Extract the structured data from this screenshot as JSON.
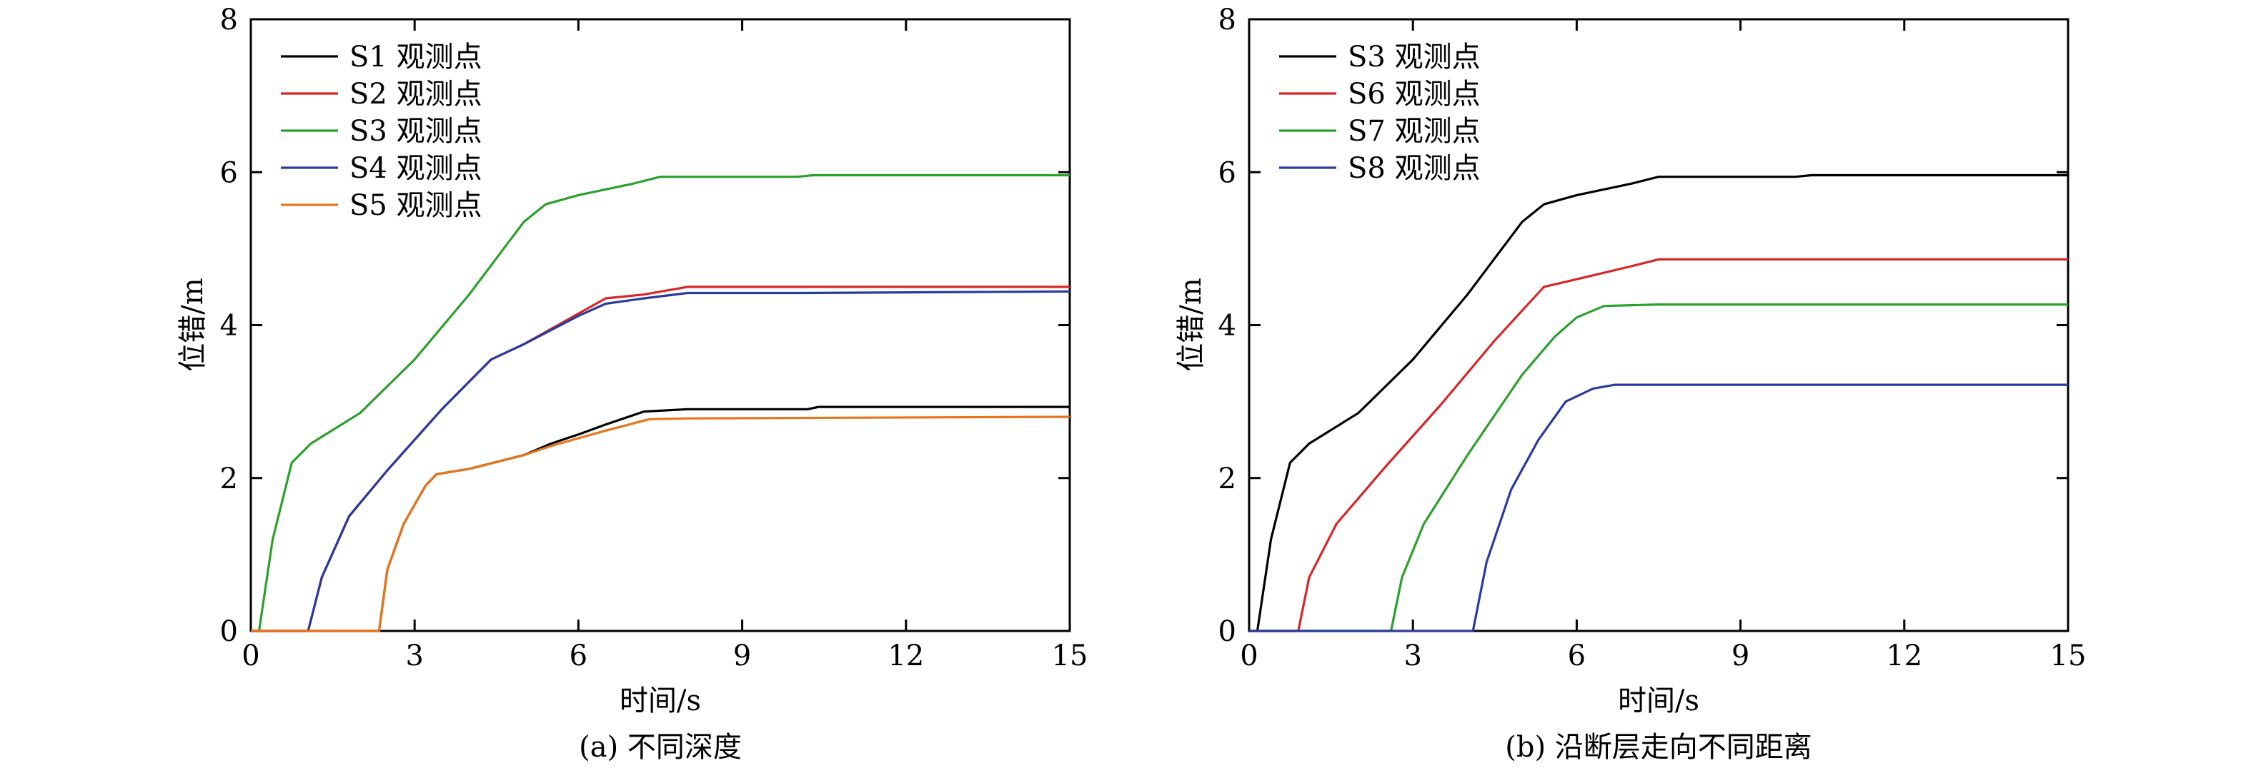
{
  "colors": {
    "black": "#000000",
    "red": "#d62728",
    "green": "#2ca02c",
    "blue": "#2b3a9e",
    "orange": "#e8741c"
  },
  "chart_data": [
    {
      "type": "line",
      "caption": "(a) 不同深度",
      "xlabel": "时间/s",
      "ylabel": "位错/m",
      "xlim": [
        0,
        15
      ],
      "ylim": [
        0,
        8
      ],
      "xticks": [
        0,
        3,
        6,
        9,
        12,
        15
      ],
      "yticks": [
        0,
        2,
        4,
        6,
        8
      ],
      "legend": "top-left",
      "series": [
        {
          "name": "S1 观测点",
          "color": "#000000",
          "points": [
            [
              0,
              0
            ],
            [
              2.35,
              0
            ],
            [
              2.5,
              0.8
            ],
            [
              2.8,
              1.4
            ],
            [
              3.2,
              1.9
            ],
            [
              3.4,
              2.05
            ],
            [
              4,
              2.12
            ],
            [
              5,
              2.3
            ],
            [
              5.5,
              2.45
            ],
            [
              6,
              2.57
            ],
            [
              6.5,
              2.7
            ],
            [
              7.2,
              2.87
            ],
            [
              8,
              2.9
            ],
            [
              10.2,
              2.9
            ],
            [
              10.4,
              2.93
            ],
            [
              15,
              2.93
            ]
          ]
        },
        {
          "name": "S2 观测点",
          "color": "#d62728",
          "points": [
            [
              0,
              0
            ],
            [
              1.05,
              0
            ],
            [
              1.3,
              0.7
            ],
            [
              1.8,
              1.5
            ],
            [
              2.5,
              2.1
            ],
            [
              3.5,
              2.9
            ],
            [
              4.4,
              3.55
            ],
            [
              5,
              3.75
            ],
            [
              6,
              4.15
            ],
            [
              6.5,
              4.35
            ],
            [
              7.2,
              4.4
            ],
            [
              8,
              4.5
            ],
            [
              10,
              4.5
            ],
            [
              15,
              4.5
            ]
          ]
        },
        {
          "name": "S3 观测点",
          "color": "#2ca02c",
          "points": [
            [
              0,
              0
            ],
            [
              0.15,
              0
            ],
            [
              0.4,
              1.2
            ],
            [
              0.75,
              2.2
            ],
            [
              1.1,
              2.45
            ],
            [
              2,
              2.85
            ],
            [
              3,
              3.55
            ],
            [
              4,
              4.4
            ],
            [
              5,
              5.35
            ],
            [
              5.4,
              5.58
            ],
            [
              6,
              5.7
            ],
            [
              7,
              5.85
            ],
            [
              7.5,
              5.94
            ],
            [
              10,
              5.94
            ],
            [
              10.3,
              5.96
            ],
            [
              15,
              5.96
            ]
          ]
        },
        {
          "name": "S4 观测点",
          "color": "#2b3a9e",
          "points": [
            [
              0,
              0
            ],
            [
              1.05,
              0
            ],
            [
              1.3,
              0.7
            ],
            [
              1.8,
              1.5
            ],
            [
              2.5,
              2.1
            ],
            [
              3.5,
              2.9
            ],
            [
              4.4,
              3.55
            ],
            [
              5,
              3.75
            ],
            [
              6,
              4.12
            ],
            [
              6.5,
              4.28
            ],
            [
              7.2,
              4.35
            ],
            [
              8,
              4.42
            ],
            [
              10,
              4.42
            ],
            [
              15,
              4.44
            ]
          ]
        },
        {
          "name": "S5 观测点",
          "color": "#e8741c",
          "points": [
            [
              0,
              0
            ],
            [
              2.35,
              0
            ],
            [
              2.5,
              0.8
            ],
            [
              2.8,
              1.4
            ],
            [
              3.2,
              1.9
            ],
            [
              3.4,
              2.05
            ],
            [
              4,
              2.12
            ],
            [
              5,
              2.3
            ],
            [
              5.5,
              2.42
            ],
            [
              6,
              2.52
            ],
            [
              6.5,
              2.62
            ],
            [
              7.3,
              2.77
            ],
            [
              8,
              2.78
            ],
            [
              15,
              2.8
            ]
          ]
        }
      ]
    },
    {
      "type": "line",
      "caption": "(b) 沿断层走向不同距离",
      "xlabel": "时间/s",
      "ylabel": "位错/m",
      "xlim": [
        0,
        15
      ],
      "ylim": [
        0,
        8
      ],
      "xticks": [
        0,
        3,
        6,
        9,
        12,
        15
      ],
      "yticks": [
        0,
        2,
        4,
        6,
        8
      ],
      "legend": "top-left",
      "series": [
        {
          "name": "S3 观测点",
          "color": "#000000",
          "points": [
            [
              0,
              0
            ],
            [
              0.15,
              0
            ],
            [
              0.4,
              1.2
            ],
            [
              0.75,
              2.2
            ],
            [
              1.1,
              2.45
            ],
            [
              2,
              2.85
            ],
            [
              3,
              3.55
            ],
            [
              4,
              4.4
            ],
            [
              5,
              5.35
            ],
            [
              5.4,
              5.58
            ],
            [
              6,
              5.7
            ],
            [
              7,
              5.85
            ],
            [
              7.5,
              5.94
            ],
            [
              10,
              5.94
            ],
            [
              10.3,
              5.96
            ],
            [
              15,
              5.96
            ]
          ]
        },
        {
          "name": "S6 观测点",
          "color": "#d62728",
          "points": [
            [
              0,
              0
            ],
            [
              0.9,
              0
            ],
            [
              1.1,
              0.7
            ],
            [
              1.6,
              1.4
            ],
            [
              2.5,
              2.15
            ],
            [
              3.5,
              2.95
            ],
            [
              4.5,
              3.8
            ],
            [
              5.4,
              4.5
            ],
            [
              6,
              4.6
            ],
            [
              7,
              4.77
            ],
            [
              7.5,
              4.86
            ],
            [
              15,
              4.86
            ]
          ]
        },
        {
          "name": "S7 观测点",
          "color": "#2ca02c",
          "points": [
            [
              0,
              0
            ],
            [
              2.6,
              0
            ],
            [
              2.8,
              0.7
            ],
            [
              3.2,
              1.4
            ],
            [
              4,
              2.3
            ],
            [
              5,
              3.35
            ],
            [
              5.6,
              3.85
            ],
            [
              6,
              4.1
            ],
            [
              6.5,
              4.25
            ],
            [
              7.5,
              4.27
            ],
            [
              15,
              4.27
            ]
          ]
        },
        {
          "name": "S8 观测点",
          "color": "#2b3a9e",
          "points": [
            [
              0,
              0
            ],
            [
              4.1,
              0
            ],
            [
              4.35,
              0.9
            ],
            [
              4.8,
              1.85
            ],
            [
              5.3,
              2.5
            ],
            [
              5.8,
              3.0
            ],
            [
              6.3,
              3.17
            ],
            [
              6.7,
              3.22
            ],
            [
              15,
              3.22
            ]
          ]
        }
      ]
    }
  ]
}
